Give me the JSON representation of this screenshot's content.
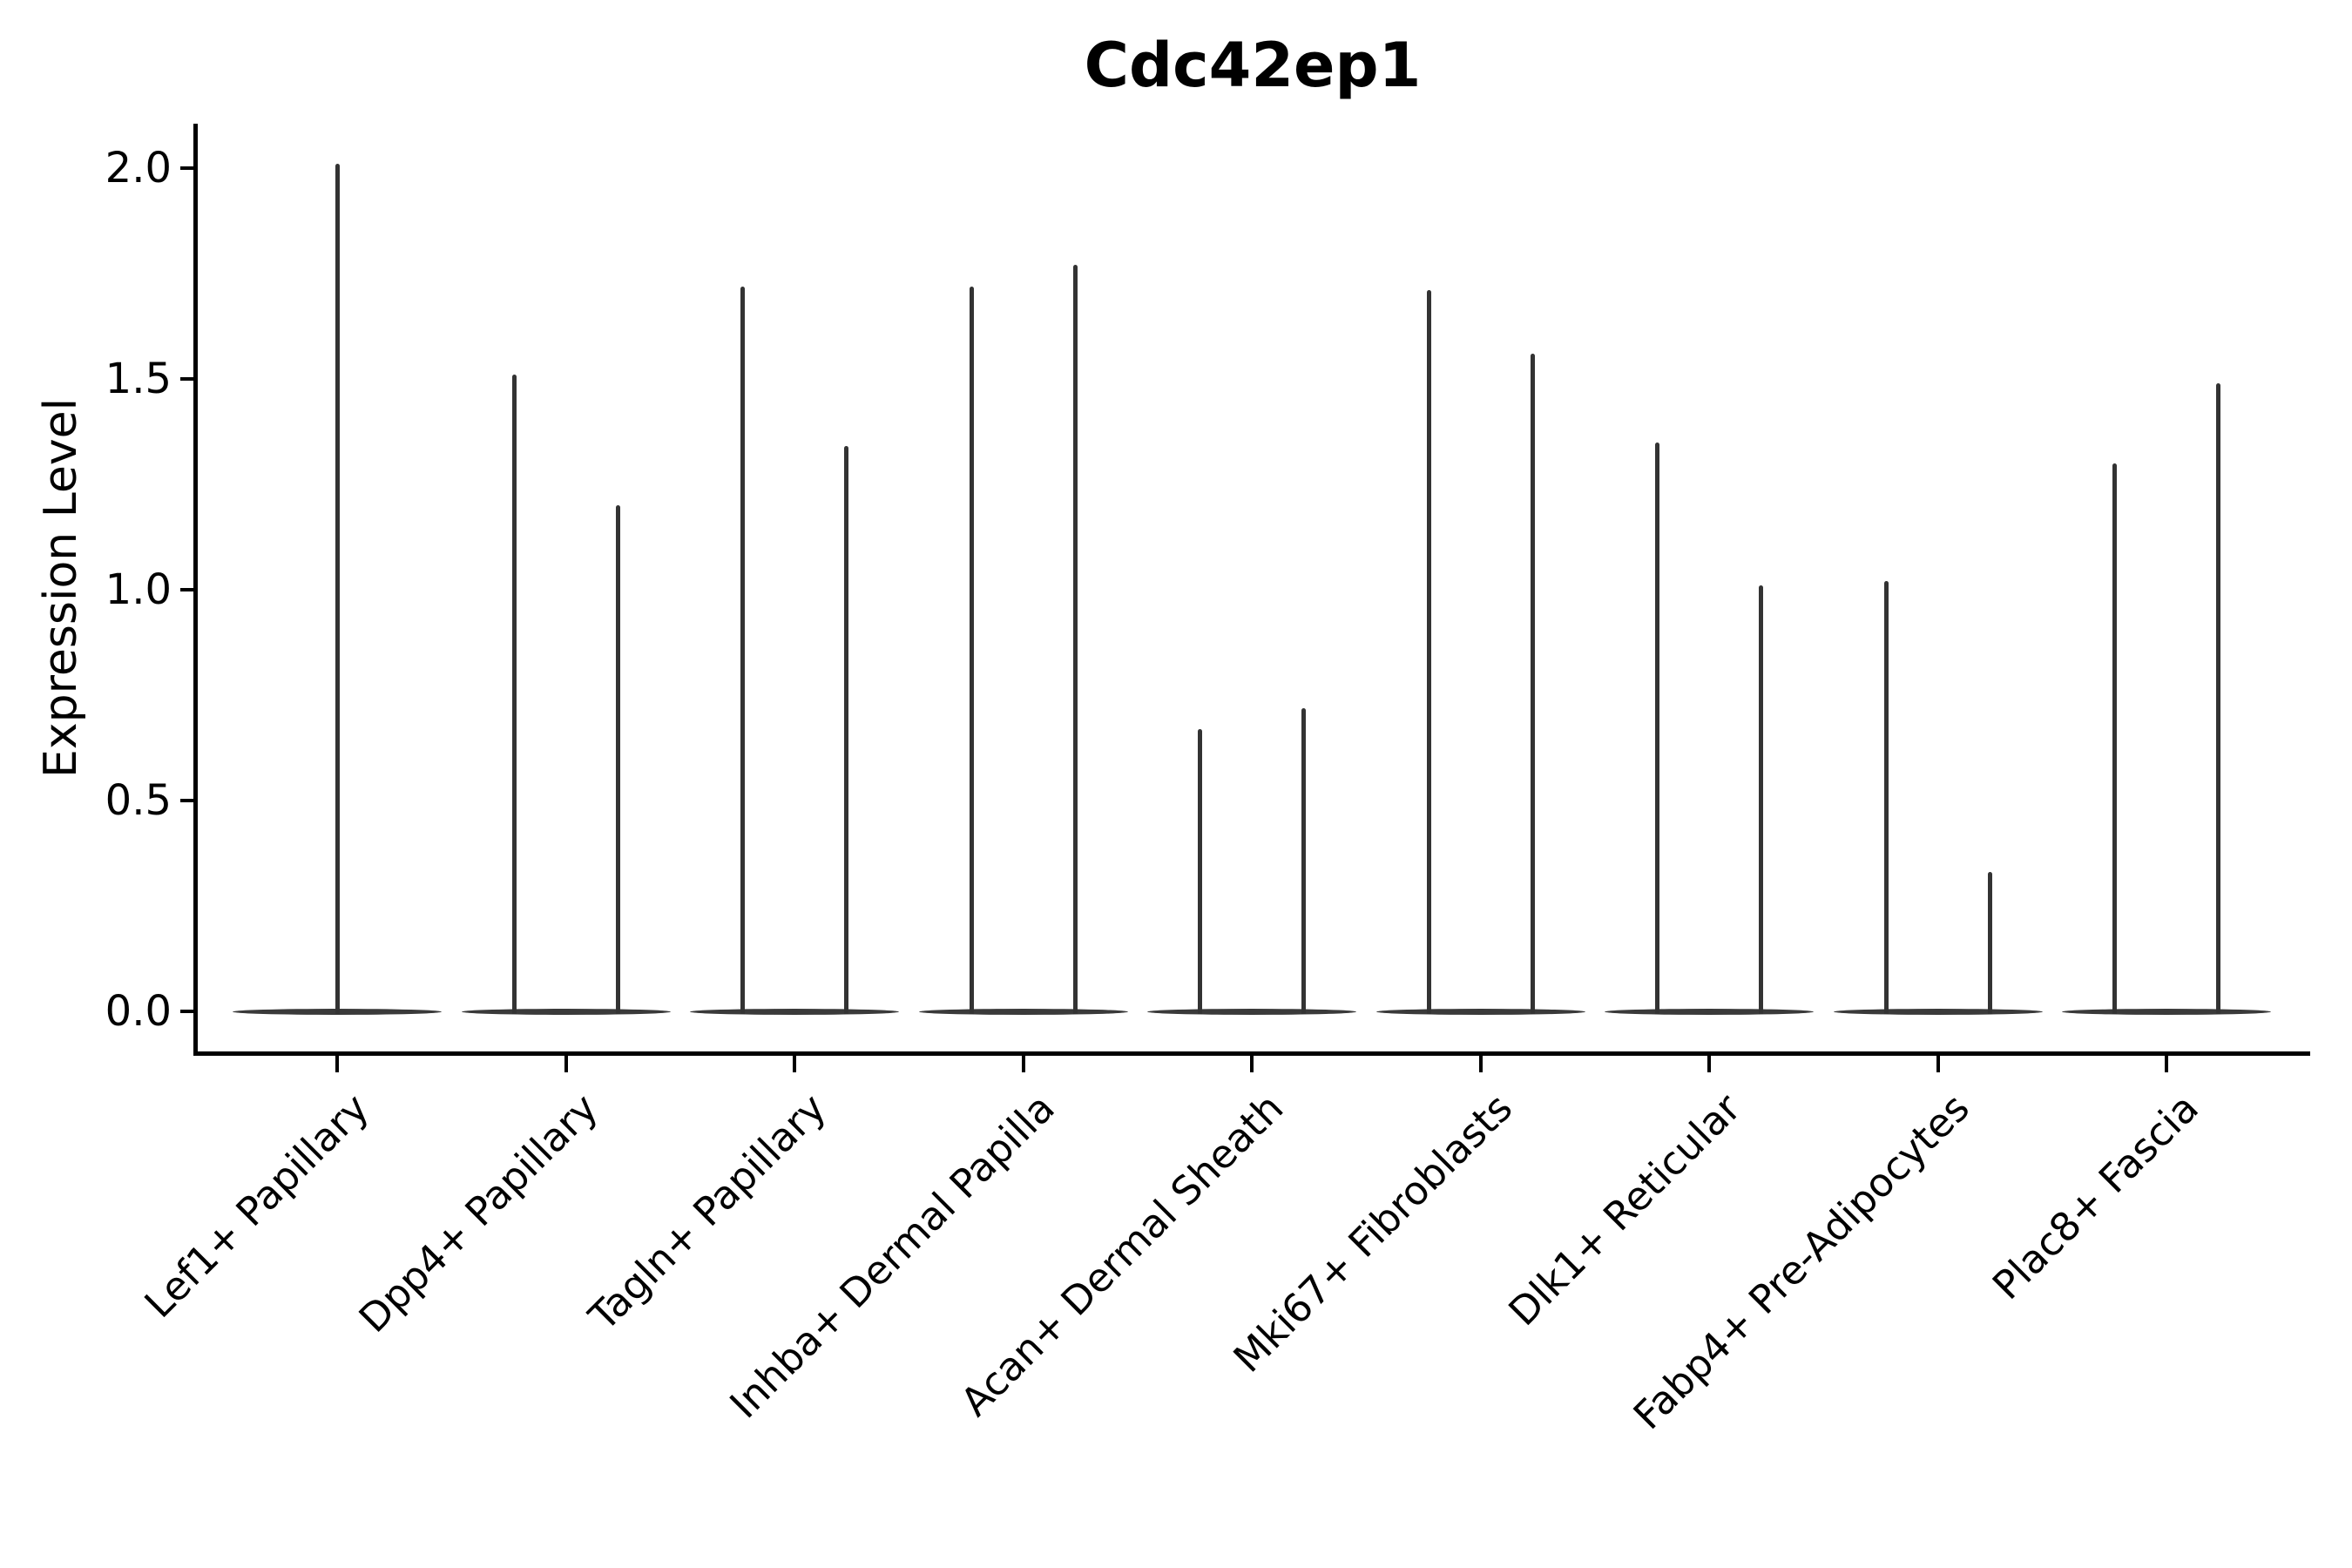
{
  "chart_data": {
    "type": "violin",
    "title": "Cdc42ep1",
    "ylabel": "Expression Level",
    "xlabel": "",
    "ylim": [
      -0.1,
      2.105
    ],
    "yticks": [
      "0.0",
      "0.5",
      "1.0",
      "1.5",
      "2.0"
    ],
    "ytick_values": [
      0.0,
      0.5,
      1.0,
      1.5,
      2.0
    ],
    "grid": false,
    "legend": "none",
    "description": "Each category shows very thin violin(s): a wide flat base at expression 0 and thin vertical tail(s) rising to the listed peak expression value(s).",
    "categories": [
      {
        "label": "Lef1+ Papillary",
        "peaks": [
          2.01
        ]
      },
      {
        "label": "Dpp4+ Papillary",
        "peaks": [
          1.51,
          1.2
        ]
      },
      {
        "label": "Tagln+ Papillary",
        "peaks": [
          1.72,
          1.34
        ]
      },
      {
        "label": "Inhba+ Dermal Papilla",
        "peaks": [
          1.72,
          1.77
        ]
      },
      {
        "label": "Acan+ Dermal Sheath",
        "peaks": [
          0.67,
          0.72
        ]
      },
      {
        "label": "Mki67+ Fibroblasts",
        "peaks": [
          1.71,
          1.56
        ]
      },
      {
        "label": "Dlk1+ Reticular",
        "peaks": [
          1.35,
          1.01
        ]
      },
      {
        "label": "Fabp4+ Pre-Adipocytes",
        "peaks": [
          1.02,
          0.33
        ]
      },
      {
        "label": "Plac8+ Fascia",
        "peaks": [
          1.3,
          1.49
        ]
      }
    ],
    "colors": {
      "violin": "#333333",
      "violin_base": "#3a3a3a",
      "axis": "#000000",
      "text": "#000000",
      "background": "#ffffff"
    }
  }
}
